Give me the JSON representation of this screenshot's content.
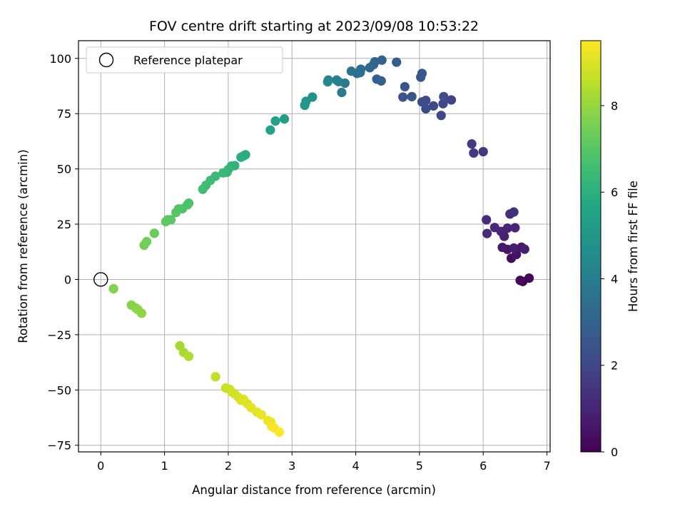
{
  "chart_data": {
    "type": "scatter",
    "title": "FOV centre drift starting at 2023/09/08 10:53:22",
    "xlabel": "Angular distance from reference (arcmin)",
    "ylabel": "Rotation from reference (arcmin)",
    "xlim": [
      -0.35,
      7.05
    ],
    "ylim": [
      -78,
      108
    ],
    "xticks": [
      "0",
      "1",
      "2",
      "3",
      "4",
      "5",
      "6",
      "7"
    ],
    "yticks": [
      "−75",
      "−50",
      "−25",
      "0",
      "25",
      "50",
      "75",
      "100"
    ],
    "grid": true,
    "legend": {
      "placement": "top-left",
      "entries": [
        "Reference platepar"
      ]
    },
    "reference_point": {
      "x": 0,
      "y": 0,
      "marker": "hollow-circle"
    },
    "colorbar": {
      "label": "Hours from first FF file",
      "colormap": "viridis",
      "range": [
        0,
        9.5
      ],
      "ticks": [
        "0",
        "2",
        "4",
        "6",
        "8"
      ],
      "tick_values": [
        0,
        2,
        4,
        6,
        8
      ]
    },
    "series": [
      {
        "points": [
          [
            6.62,
            -0.9,
            0.05
          ],
          [
            6.72,
            0.6,
            0.15
          ],
          [
            6.58,
            -0.4,
            0.25
          ],
          [
            6.44,
            9.6,
            0.35
          ],
          [
            6.52,
            11.3,
            0.45
          ],
          [
            6.38,
            13.6,
            0.55
          ],
          [
            6.6,
            14.6,
            0.6
          ],
          [
            6.3,
            14.5,
            0.65
          ],
          [
            6.48,
            14.2,
            0.75
          ],
          [
            6.65,
            13.7,
            0.8
          ],
          [
            6.33,
            19.5,
            0.85
          ],
          [
            6.28,
            21.7,
            0.95
          ],
          [
            6.38,
            23.2,
            1.0
          ],
          [
            6.5,
            23.4,
            1.05
          ],
          [
            6.18,
            23.5,
            1.1
          ],
          [
            6.06,
            20.8,
            1.15
          ],
          [
            6.05,
            27.0,
            1.2
          ],
          [
            6.42,
            29.6,
            1.25
          ],
          [
            6.48,
            30.5,
            1.3
          ],
          [
            6.0,
            57.8,
            1.5
          ],
          [
            5.85,
            57.2,
            1.55
          ],
          [
            5.82,
            61.3,
            1.6
          ],
          [
            5.5,
            81.2,
            1.9
          ],
          [
            5.37,
            79.5,
            2.0
          ],
          [
            5.34,
            74.2,
            2.05
          ],
          [
            5.22,
            78.5,
            2.1
          ],
          [
            5.1,
            77.2,
            2.15
          ],
          [
            5.1,
            81.0,
            2.2
          ],
          [
            5.04,
            80.3,
            2.25
          ],
          [
            5.38,
            82.7,
            2.3
          ],
          [
            4.74,
            82.5,
            2.4
          ],
          [
            4.88,
            82.7,
            2.45
          ],
          [
            4.77,
            87.2,
            2.5
          ],
          [
            5.02,
            91.5,
            2.55
          ],
          [
            5.04,
            93.2,
            2.6
          ],
          [
            4.64,
            98.3,
            2.75
          ],
          [
            4.4,
            89.8,
            2.9
          ],
          [
            4.33,
            90.6,
            2.95
          ],
          [
            4.41,
            99.2,
            3.0
          ],
          [
            4.3,
            98.5,
            3.05
          ],
          [
            4.28,
            97.2,
            3.1
          ],
          [
            4.22,
            95.8,
            3.2
          ],
          [
            4.08,
            95.1,
            3.3
          ],
          [
            4.07,
            93.6,
            3.4
          ],
          [
            4.02,
            93.2,
            3.5
          ],
          [
            3.93,
            94.2,
            3.6
          ],
          [
            3.83,
            88.8,
            3.8
          ],
          [
            3.78,
            84.6,
            3.9
          ],
          [
            3.73,
            89.5,
            4.0
          ],
          [
            3.7,
            90.2,
            4.1
          ],
          [
            3.57,
            90.2,
            4.2
          ],
          [
            3.56,
            89.4,
            4.4
          ],
          [
            3.32,
            82.5,
            4.8
          ],
          [
            3.22,
            80.6,
            4.9
          ],
          [
            3.2,
            78.8,
            5.0
          ],
          [
            2.88,
            72.6,
            5.3
          ],
          [
            2.74,
            71.7,
            5.4
          ],
          [
            2.66,
            67.6,
            5.5
          ],
          [
            2.27,
            56.4,
            5.8
          ],
          [
            2.2,
            55.3,
            5.9
          ],
          [
            2.24,
            55.9,
            5.95
          ],
          [
            2.1,
            51.5,
            6.1
          ],
          [
            2.05,
            51.3,
            6.15
          ],
          [
            2.0,
            49.7,
            6.25
          ],
          [
            1.98,
            48.5,
            6.3
          ],
          [
            1.92,
            48.2,
            6.35
          ],
          [
            1.8,
            46.7,
            6.4
          ],
          [
            1.72,
            44.8,
            6.5
          ],
          [
            1.65,
            42.6,
            6.55
          ],
          [
            1.6,
            40.8,
            6.6
          ],
          [
            1.38,
            34.5,
            6.75
          ],
          [
            1.36,
            33.8,
            6.8
          ],
          [
            1.28,
            32.0,
            6.85
          ],
          [
            1.22,
            31.9,
            6.9
          ],
          [
            1.18,
            30.3,
            6.95
          ],
          [
            1.1,
            27.0,
            7.0
          ],
          [
            1.05,
            27.0,
            7.05
          ],
          [
            1.02,
            26.2,
            7.1
          ],
          [
            0.84,
            20.9,
            7.3
          ],
          [
            0.72,
            17.1,
            7.4
          ],
          [
            0.68,
            15.5,
            7.45
          ],
          [
            0.2,
            -4.2,
            7.7
          ],
          [
            0.48,
            -11.6,
            7.75
          ],
          [
            0.55,
            -12.9,
            7.8
          ],
          [
            0.58,
            -13.6,
            7.85
          ],
          [
            0.64,
            -15.3,
            7.9
          ],
          [
            1.24,
            -30.0,
            8.2
          ],
          [
            1.3,
            -33.0,
            8.3
          ],
          [
            1.38,
            -34.8,
            8.35
          ],
          [
            1.8,
            -44.0,
            8.6
          ],
          [
            1.96,
            -49.1,
            8.7
          ],
          [
            2.02,
            -49.7,
            8.75
          ],
          [
            2.06,
            -51.0,
            8.8
          ],
          [
            2.1,
            -51.8,
            8.85
          ],
          [
            2.16,
            -53.3,
            8.9
          ],
          [
            2.2,
            -54.7,
            8.95
          ],
          [
            2.24,
            -54.2,
            9.0
          ],
          [
            2.3,
            -56.2,
            9.05
          ],
          [
            2.36,
            -58.0,
            9.1
          ],
          [
            2.45,
            -60.0,
            9.15
          ],
          [
            2.52,
            -61.2,
            9.2
          ],
          [
            2.62,
            -63.8,
            9.25
          ],
          [
            2.67,
            -64.5,
            9.3
          ],
          [
            2.68,
            -66.4,
            9.35
          ],
          [
            2.72,
            -67.2,
            9.4
          ],
          [
            2.8,
            -69.0,
            9.45
          ]
        ]
      }
    ]
  }
}
